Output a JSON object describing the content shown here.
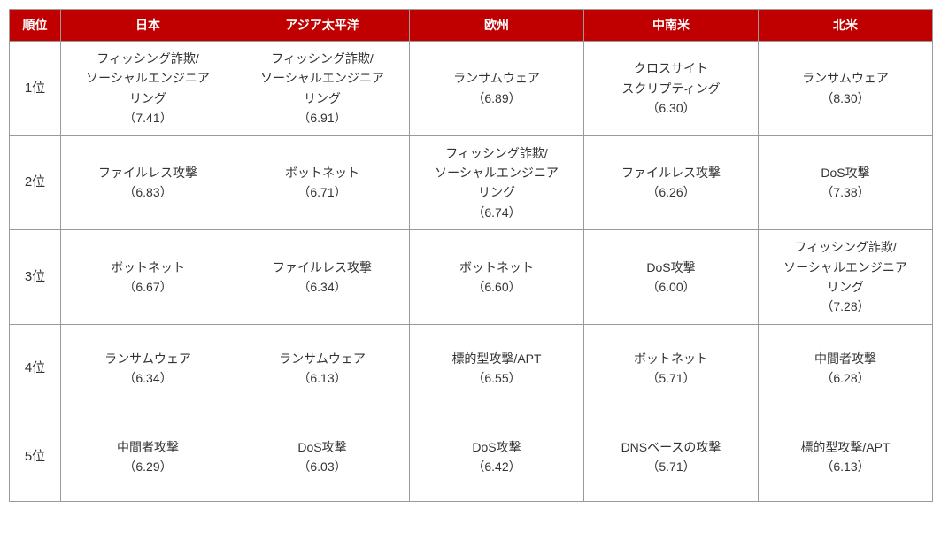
{
  "table": {
    "header_bg": "#c00000",
    "header_fg": "#ffffff",
    "border_color": "#9a9a9a",
    "cell_fg": "#333333",
    "font_size": 14,
    "columns": [
      "順位",
      "日本",
      "アジア太平洋",
      "欧州",
      "中南米",
      "北米"
    ],
    "ranks": [
      "1位",
      "2位",
      "3位",
      "4位",
      "5位"
    ],
    "rows": [
      [
        {
          "lines": [
            "フィッシング詐欺/",
            "ソーシャルエンジニア",
            "リング",
            "（7.41）"
          ]
        },
        {
          "lines": [
            "フィッシング詐欺/",
            "ソーシャルエンジニア",
            "リング",
            "（6.91）"
          ]
        },
        {
          "lines": [
            "ランサムウェア",
            "（6.89）"
          ]
        },
        {
          "lines": [
            "クロスサイト",
            "スクリプティング",
            "（6.30）"
          ]
        },
        {
          "lines": [
            "ランサムウェア",
            "（8.30）"
          ]
        }
      ],
      [
        {
          "lines": [
            "ファイルレス攻撃",
            "（6.83）"
          ]
        },
        {
          "lines": [
            "ボットネット",
            "（6.71）"
          ]
        },
        {
          "lines": [
            "フィッシング詐欺/",
            "ソーシャルエンジニア",
            "リング",
            "（6.74）"
          ]
        },
        {
          "lines": [
            "ファイルレス攻撃",
            "（6.26）"
          ]
        },
        {
          "lines": [
            "DoS攻撃",
            "（7.38）"
          ]
        }
      ],
      [
        {
          "lines": [
            "ボットネット",
            "（6.67）"
          ]
        },
        {
          "lines": [
            "ファイルレス攻撃",
            "（6.34）"
          ]
        },
        {
          "lines": [
            "ボットネット",
            "（6.60）"
          ]
        },
        {
          "lines": [
            "DoS攻撃",
            "（6.00）"
          ]
        },
        {
          "lines": [
            "フィッシング詐欺/",
            "ソーシャルエンジニア",
            "リング",
            "（7.28）"
          ]
        }
      ],
      [
        {
          "lines": [
            "ランサムウェア",
            "（6.34）"
          ]
        },
        {
          "lines": [
            "ランサムウェア",
            "（6.13）"
          ]
        },
        {
          "lines": [
            "標的型攻撃/APT",
            "（6.55）"
          ]
        },
        {
          "lines": [
            "ボットネット",
            "（5.71）"
          ]
        },
        {
          "lines": [
            "中間者攻撃",
            "（6.28）"
          ]
        }
      ],
      [
        {
          "lines": [
            "中間者攻撃",
            "（6.29）"
          ]
        },
        {
          "lines": [
            "DoS攻撃",
            "（6.03）"
          ]
        },
        {
          "lines": [
            "DoS攻撃",
            "（6.42）"
          ]
        },
        {
          "lines": [
            "DNSベースの攻撃",
            "（5.71）"
          ]
        },
        {
          "lines": [
            "標的型攻撃/APT",
            "（6.13）"
          ]
        }
      ]
    ]
  }
}
